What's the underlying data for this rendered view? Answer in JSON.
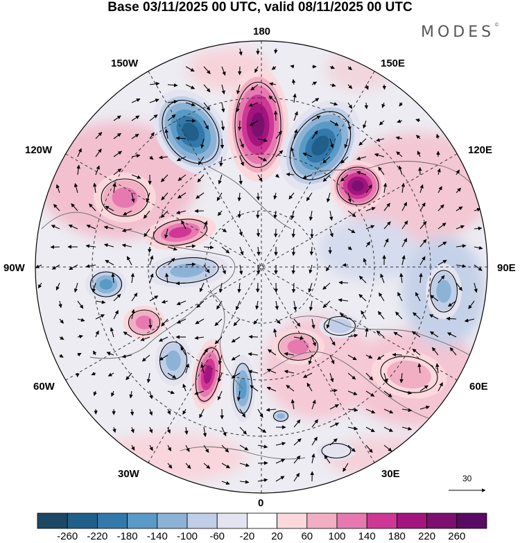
{
  "title": "Base 03/11/2025 00 UTC, valid 08/11/2025 00 UTC",
  "brand": "MODES",
  "brand_mark": "©",
  "longitude_labels": {
    "lon_180": "180",
    "lon_150w": "150W",
    "lon_150e": "150E",
    "lon_120w": "120W",
    "lon_120e": "120E",
    "lon_90w": "90W",
    "lon_90e": "90E",
    "lon_60w": "60W",
    "lon_60e": "60E",
    "lon_30w": "30W",
    "lon_30e": "30E",
    "lon_0": "0"
  },
  "reference_vector": "30",
  "colorbar": {
    "ticks": [
      "-260",
      "-220",
      "-180",
      "-140",
      "-100",
      "-60",
      "-20",
      "20",
      "60",
      "100",
      "140",
      "180",
      "220",
      "260"
    ],
    "colors": [
      "#1c4866",
      "#1f5f8a",
      "#3278ab",
      "#5a9ac6",
      "#8cb3d6",
      "#c0cfe7",
      "#e4e4f0",
      "#ffffff",
      "#fad8dc",
      "#f2afc4",
      "#e67ab0",
      "#cf3795",
      "#a3147e",
      "#7c0f6f",
      "#5a0a64"
    ]
  },
  "anomalies": [
    {
      "name": "anomaly-neg-150w",
      "value": -260
    },
    {
      "name": "anomaly-pos-180",
      "value": 260
    },
    {
      "name": "anomaly-neg-150e",
      "value": -260
    },
    {
      "name": "anomaly-pos-120e",
      "value": 260
    },
    {
      "name": "anomaly-pos-120w",
      "value": 140
    },
    {
      "name": "anomaly-pos-105w",
      "value": 180
    },
    {
      "name": "anomaly-neg-90w",
      "value": -140
    },
    {
      "name": "anomaly-neg-95w",
      "value": -180
    },
    {
      "name": "anomaly-pos-70w",
      "value": 140
    },
    {
      "name": "anomaly-neg-60w",
      "value": -140
    },
    {
      "name": "anomaly-pos-50w",
      "value": 220
    },
    {
      "name": "anomaly-neg-30w",
      "value": -180
    },
    {
      "name": "anomaly-pos-45e",
      "value": 140
    },
    {
      "name": "anomaly-pos-60e",
      "value": 100
    },
    {
      "name": "anomaly-neg-90e",
      "value": -140
    },
    {
      "name": "anomaly-neg-60e",
      "value": -100
    },
    {
      "name": "anomaly-neg-30e",
      "value": -60
    },
    {
      "name": "anomaly-neg-10e",
      "value": -140
    }
  ]
}
